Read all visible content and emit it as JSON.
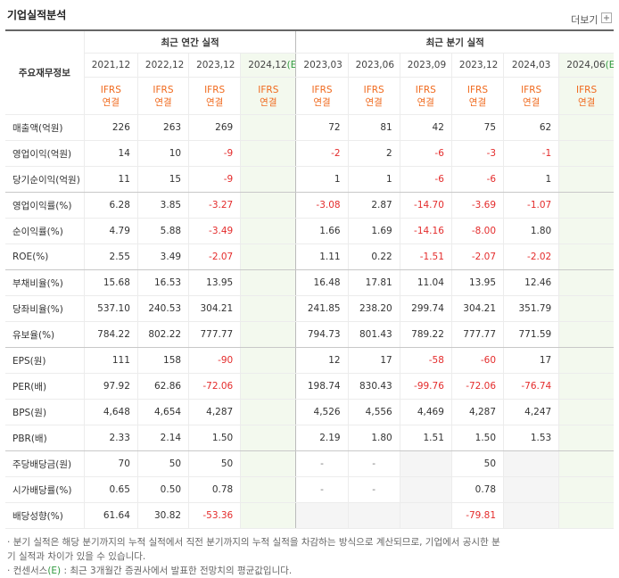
{
  "header": {
    "title": "기업실적분석",
    "more": "더보기"
  },
  "table": {
    "corner": "주요재무정보",
    "annual_title": "최근 연간 실적",
    "quarterly_title": "최근 분기 실적",
    "annual_columns": [
      {
        "date": "2021,12",
        "standard": "IFRS",
        "scope": "연결"
      },
      {
        "date": "2022,12",
        "standard": "IFRS",
        "scope": "연결"
      },
      {
        "date": "2023,12",
        "standard": "IFRS",
        "scope": "연결"
      },
      {
        "date": "2024,12",
        "estimate": "(E)",
        "standard": "IFRS",
        "scope": "연결"
      }
    ],
    "quarterly_columns": [
      {
        "date": "2023,03",
        "standard": "IFRS",
        "scope": "연결"
      },
      {
        "date": "2023,06",
        "standard": "IFRS",
        "scope": "연결"
      },
      {
        "date": "2023,09",
        "standard": "IFRS",
        "scope": "연결"
      },
      {
        "date": "2023,12",
        "standard": "IFRS",
        "scope": "연결"
      },
      {
        "date": "2024,03",
        "standard": "IFRS",
        "scope": "연결"
      },
      {
        "date": "2024,06",
        "estimate": "(E)",
        "standard": "IFRS",
        "scope": "연결"
      }
    ],
    "rows": [
      {
        "label": "매출액(억원)",
        "annual": [
          "226",
          "263",
          "269",
          null
        ],
        "quarterly": [
          "72",
          "81",
          "42",
          "75",
          "62",
          null
        ]
      },
      {
        "label": "영업이익(억원)",
        "annual": [
          "14",
          "10",
          "-9",
          null
        ],
        "quarterly": [
          "-2",
          "2",
          "-6",
          "-3",
          "-1",
          null
        ]
      },
      {
        "label": "당기순이익(억원)",
        "annual": [
          "11",
          "15",
          "-9",
          null
        ],
        "quarterly": [
          "1",
          "1",
          "-6",
          "-6",
          "1",
          null
        ]
      },
      {
        "label": "영업이익률(%)",
        "annual": [
          "6.28",
          "3.85",
          "-3.27",
          null
        ],
        "quarterly": [
          "-3.08",
          "2.87",
          "-14.70",
          "-3.69",
          "-1.07",
          null
        ]
      },
      {
        "label": "순이익률(%)",
        "annual": [
          "4.79",
          "5.88",
          "-3.49",
          null
        ],
        "quarterly": [
          "1.66",
          "1.69",
          "-14.16",
          "-8.00",
          "1.80",
          null
        ]
      },
      {
        "label": "ROE(%)",
        "annual": [
          "2.55",
          "3.49",
          "-2.07",
          null
        ],
        "quarterly": [
          "1.11",
          "0.22",
          "-1.51",
          "-2.07",
          "-2.02",
          null
        ]
      },
      {
        "label": "부채비율(%)",
        "annual": [
          "15.68",
          "16.53",
          "13.95",
          null
        ],
        "quarterly": [
          "16.48",
          "17.81",
          "11.04",
          "13.95",
          "12.46",
          null
        ]
      },
      {
        "label": "당좌비율(%)",
        "annual": [
          "537.10",
          "240.53",
          "304.21",
          null
        ],
        "quarterly": [
          "241.85",
          "238.20",
          "299.74",
          "304.21",
          "351.79",
          null
        ]
      },
      {
        "label": "유보율(%)",
        "annual": [
          "784.22",
          "802.22",
          "777.77",
          null
        ],
        "quarterly": [
          "794.73",
          "801.43",
          "789.22",
          "777.77",
          "771.59",
          null
        ]
      },
      {
        "label": "EPS(원)",
        "annual": [
          "111",
          "158",
          "-90",
          null
        ],
        "quarterly": [
          "12",
          "17",
          "-58",
          "-60",
          "17",
          null
        ]
      },
      {
        "label": "PER(배)",
        "annual": [
          "97.92",
          "62.86",
          "-72.06",
          null
        ],
        "quarterly": [
          "198.74",
          "830.43",
          "-99.76",
          "-72.06",
          "-76.74",
          null
        ]
      },
      {
        "label": "BPS(원)",
        "annual": [
          "4,648",
          "4,654",
          "4,287",
          null
        ],
        "quarterly": [
          "4,526",
          "4,556",
          "4,469",
          "4,287",
          "4,247",
          null
        ]
      },
      {
        "label": "PBR(배)",
        "annual": [
          "2.33",
          "2.14",
          "1.50",
          null
        ],
        "quarterly": [
          "2.19",
          "1.80",
          "1.51",
          "1.50",
          "1.53",
          null
        ]
      },
      {
        "label": "주당배당금(원)",
        "annual": [
          "70",
          "50",
          "50",
          null
        ],
        "quarterly": [
          "-",
          "-",
          null,
          "50",
          null,
          null
        ]
      },
      {
        "label": "시가배당률(%)",
        "annual": [
          "0.65",
          "0.50",
          "0.78",
          null
        ],
        "quarterly": [
          "-",
          "-",
          null,
          "0.78",
          null,
          null
        ]
      },
      {
        "label": "배당성향(%)",
        "annual": [
          "61.64",
          "30.82",
          "-53.36",
          null
        ],
        "quarterly": [
          null,
          null,
          null,
          "-79.81",
          null,
          null
        ]
      }
    ]
  },
  "notes": {
    "note1": "분기 실적은 해당 분기까지의 누적 실적에서 직전 분기까지의 누적 실적을 차감하는 방식으로 계산되므로, 기업에서 공시한 분기 실적과 차이가 있을 수 있습니다.",
    "note2_term": "컨센서스",
    "note2_mark": "(E)",
    "note2_text": " : 최근 3개월간 증권사에서 발표한 전망치의 평균값입니다."
  }
}
